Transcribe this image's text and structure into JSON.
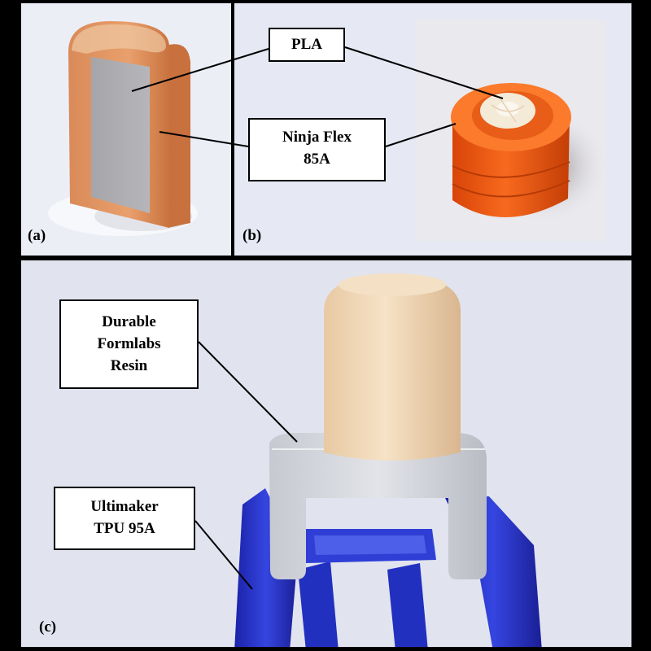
{
  "panels": {
    "a": {
      "label": "(a)"
    },
    "b": {
      "label": "(b)"
    },
    "c": {
      "label": "(c)"
    }
  },
  "callouts": {
    "pla": {
      "lines": [
        "PLA"
      ]
    },
    "ninja_flex": {
      "lines": [
        "Ninja Flex",
        "85A"
      ]
    },
    "formlabs": {
      "lines": [
        "Durable",
        "Formlabs",
        "Resin"
      ]
    },
    "tpu": {
      "lines": [
        "Ultimaker",
        "TPU 95A"
      ]
    }
  },
  "colors": {
    "ninja_flex_orange": "#e08b55",
    "pla_gray": "#a9a9ad",
    "printed_orange": "#f05a12",
    "resin_tan": "#f2d9b8",
    "holder_gray": "#d4d6dc",
    "tpu_blue": "#2533c7"
  }
}
